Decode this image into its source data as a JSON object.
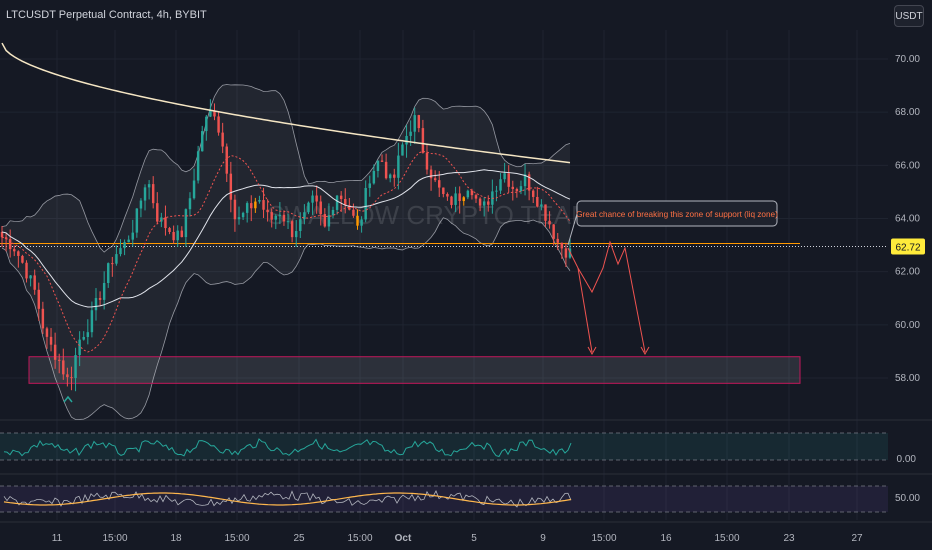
{
  "header": {
    "title": "LTCUSDT Perpetual Contract, 4h, BYBIT",
    "currency": "USDT"
  },
  "watermark": "SWALLOW CRYPTO TEAM",
  "annotation": {
    "text": "Great chance of breaking this zone of support (liq zone)"
  },
  "colors": {
    "background": "#151924",
    "up": "#26a69a",
    "down": "#ef5350",
    "orange": "#ff9800",
    "support_zone_border": "#c2185b",
    "accent_text": "#ff7043"
  },
  "chart_data": {
    "type": "line",
    "symbol": "LTCUSDT",
    "timeframe": "4h",
    "ylim": [
      57,
      71
    ],
    "y_ticks": [
      "70.00",
      "68.00",
      "66.00",
      "64.00",
      "62.00",
      "60.00",
      "58.00"
    ],
    "x_ticks": [
      "11",
      "15:00",
      "18",
      "15:00",
      "25",
      "15:00",
      "Oct",
      "5",
      "9",
      "15:00",
      "16",
      "15:00",
      "23",
      "27"
    ],
    "last_price": "62.72",
    "support_level": 62.72,
    "support_zone": [
      57.8,
      58.8
    ],
    "projected_path": [
      63.2,
      62.3,
      61.0,
      62.6,
      61.7,
      63.0,
      61.6,
      59.0,
      62.8,
      58.7
    ],
    "price_anchors": [
      63.3,
      63.0,
      62.2,
      61.2,
      59.4,
      58.8,
      57.8,
      59.5,
      60.2,
      61.4,
      62.6,
      63.0,
      63.9,
      65.6,
      64.0,
      63.6,
      63.2,
      65.0,
      67.4,
      68.2,
      66.4,
      63.8,
      64.3,
      64.8,
      63.9,
      64.3,
      63.5,
      63.9,
      64.7,
      63.6,
      65.0,
      64.6,
      63.5,
      65.6,
      66.3,
      65.2,
      66.8,
      67.8,
      66.3,
      65.2,
      64.6,
      64.8,
      65.4,
      64.2,
      65.0,
      65.8,
      65.1,
      65.5,
      64.8,
      64.0,
      63.0,
      62.72
    ],
    "oscillator1": {
      "label": "0.00"
    },
    "oscillator2": {
      "label": "50.00"
    }
  }
}
